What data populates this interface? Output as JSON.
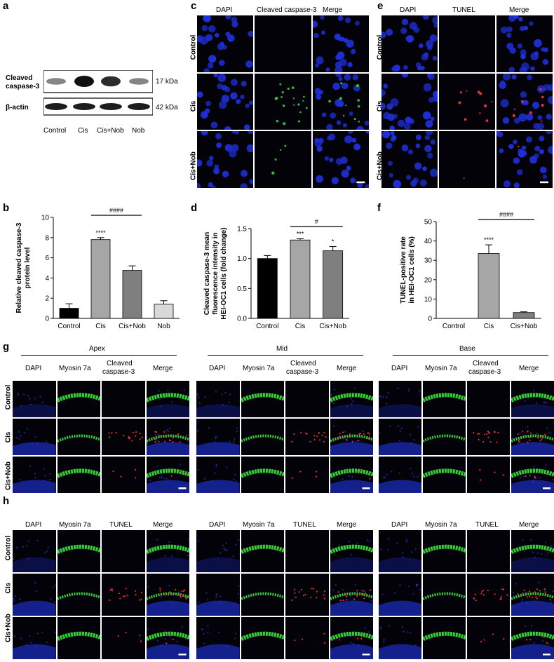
{
  "panel_labels": {
    "a": "a",
    "b": "b",
    "c": "c",
    "d": "d",
    "e": "e",
    "f": "f",
    "g": "g",
    "h": "h"
  },
  "blot": {
    "rows": [
      {
        "label_line1": "Cleaved",
        "label_line2": "caspase-3",
        "kda": "17 kDa"
      },
      {
        "label_line1": "β-actin",
        "label_line2": "",
        "kda": "42 kDa"
      }
    ],
    "lanes": [
      "Control",
      "Cis",
      "Cis+Nob",
      "Nob"
    ],
    "band_intensity_row1": [
      0.35,
      1.0,
      0.85,
      0.35
    ],
    "band_intensity_row2": [
      0.95,
      0.95,
      0.95,
      0.95
    ]
  },
  "panel_c": {
    "columns": [
      "DAPI",
      "Cleaved caspase-3",
      "Merge"
    ],
    "rows": [
      "Control",
      "Cis",
      "Cis+Nob"
    ]
  },
  "panel_e": {
    "columns": [
      "DAPI",
      "TUNEL",
      "Merge"
    ],
    "rows": [
      "Control",
      "Cis",
      "Cis+Nob"
    ]
  },
  "panel_g": {
    "regions": [
      "Apex",
      "Mid",
      "Base"
    ],
    "columns": [
      "DAPI",
      "Myosin 7a",
      "Cleaved",
      "caspase-3",
      "Merge"
    ],
    "rows": [
      "Control",
      "Cis",
      "Cis+Nob"
    ]
  },
  "panel_h": {
    "columns": [
      "DAPI",
      "Myosin 7a",
      "TUNEL",
      "Merge"
    ],
    "rows": [
      "Control",
      "Cis",
      "Cis+Nob"
    ]
  },
  "chart_data": [
    {
      "id": "b",
      "type": "bar",
      "categories": [
        "Control",
        "Cis",
        "Cis+Nob",
        "Nob"
      ],
      "values": [
        1.0,
        7.8,
        4.75,
        1.4
      ],
      "errors": [
        0.45,
        0.2,
        0.45,
        0.35
      ],
      "colors": [
        "#000000",
        "#a6a6a6",
        "#7f7f7f",
        "#d9d9d9"
      ],
      "ylabel_line1": "Relative cleaved caspase-3",
      "ylabel_line2": "protein level",
      "ylim": [
        0,
        10
      ],
      "yticks": [
        "0",
        "2",
        "4",
        "6",
        "8",
        "10"
      ],
      "annotations": [
        {
          "text": "****",
          "category": "Cis"
        }
      ],
      "bracket": {
        "text": "####",
        "from": "Cis",
        "to": "Cis+Nob"
      }
    },
    {
      "id": "d",
      "type": "bar",
      "categories": [
        "Control",
        "Cis",
        "Cis+Nob"
      ],
      "values": [
        1.0,
        1.31,
        1.13
      ],
      "errors": [
        0.05,
        0.02,
        0.07
      ],
      "colors": [
        "#000000",
        "#a6a6a6",
        "#7f7f7f"
      ],
      "ylabel_line1": "Cleaved caspase-3 mean",
      "ylabel_line2": "fluorescence intensity in",
      "ylabel_line3": "HEI-OC1 cells (fold change)",
      "ylim": [
        0,
        1.5
      ],
      "yticks": [
        "0.0",
        "0.5",
        "1.0",
        "1.5"
      ],
      "annotations": [
        {
          "text": "***",
          "category": "Cis"
        },
        {
          "text": "*",
          "category": "Cis+Nob"
        }
      ],
      "bracket": {
        "text": "#",
        "from": "Cis",
        "to": "Cis+Nob"
      }
    },
    {
      "id": "f",
      "type": "bar",
      "categories": [
        "Control",
        "Cis",
        "Cis+Nob"
      ],
      "values": [
        0.0,
        33.5,
        3.0
      ],
      "errors": [
        0.0,
        4.5,
        0.4
      ],
      "colors": [
        "#000000",
        "#a6a6a6",
        "#7f7f7f"
      ],
      "ylabel_line1": "TUNEL-positive rate",
      "ylabel_line2": "in HEI-OC1 cells (%)",
      "ylim": [
        0,
        50
      ],
      "yticks": [
        "0",
        "10",
        "20",
        "30",
        "40",
        "50"
      ],
      "annotations": [
        {
          "text": "****",
          "category": "Cis"
        }
      ],
      "bracket": {
        "text": "####",
        "from": "Cis",
        "to": "Cis+Nob"
      }
    }
  ]
}
